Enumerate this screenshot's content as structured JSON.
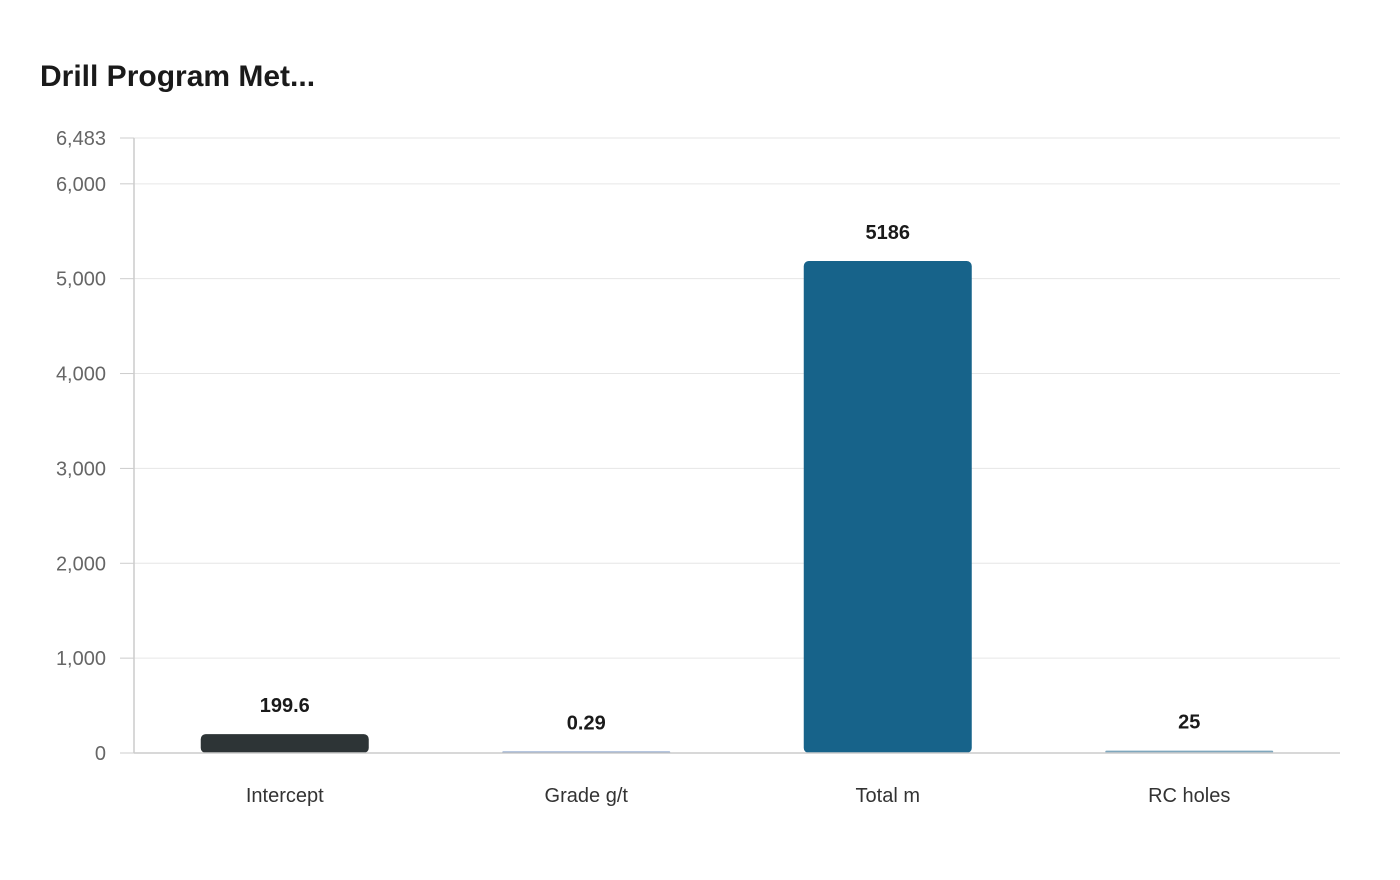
{
  "chart_data": {
    "type": "bar",
    "title": "Drill Program Met...",
    "categories": [
      "Intercept",
      "Grade g/t",
      "Total m",
      "RC holes"
    ],
    "values": [
      199.6,
      0.29,
      5186,
      25
    ],
    "value_labels": [
      "199.6",
      "0.29",
      "5186",
      "25"
    ],
    "bar_colors": [
      "#2d3436",
      "#6c8ebf",
      "#17638a",
      "#7fa7bd"
    ],
    "ylim": [
      0,
      6483
    ],
    "yticks": [
      0,
      1000,
      2000,
      3000,
      4000,
      5000,
      6000,
      6483
    ],
    "ytick_labels": [
      "0",
      "1,000",
      "2,000",
      "3,000",
      "4,000",
      "5,000",
      "6,000",
      "6,483"
    ],
    "xlabel": "",
    "ylabel": "",
    "grid": true,
    "legend": "none"
  }
}
